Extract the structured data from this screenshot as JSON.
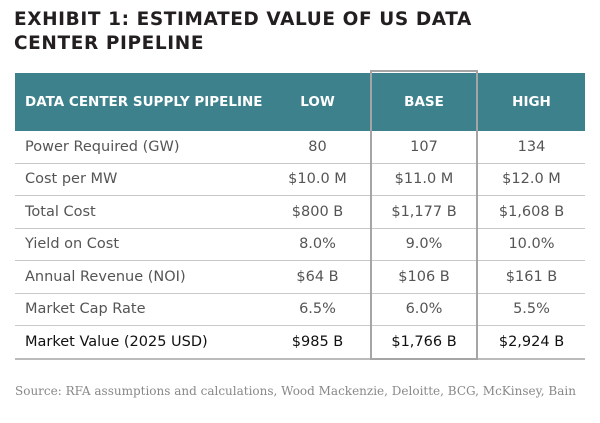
{
  "title": "EXHIBIT 1: ESTIMATED VALUE OF US DATA CENTER PIPELINE",
  "header": {
    "label": "DATA CENTER SUPPLY PIPELINE",
    "low": "LOW",
    "base": "BASE",
    "high": "HIGH"
  },
  "header_color": "#3c818c",
  "rows": [
    {
      "label": "Power Required (GW)",
      "low": "80",
      "base": "107",
      "high": "134"
    },
    {
      "label": "Cost per MW",
      "low": "$10.0 M",
      "base": "$11.0 M",
      "high": "$12.0 M"
    },
    {
      "label": "Total Cost",
      "low": "$800 B",
      "base": "$1,177 B",
      "high": "$1,608 B"
    },
    {
      "label": "Yield on Cost",
      "low": "8.0%",
      "base": "9.0%",
      "high": "10.0%"
    },
    {
      "label": "Annual Revenue (NOI)",
      "low": "$64 B",
      "base": "$106 B",
      "high": "$161 B"
    },
    {
      "label": "Market Cap Rate",
      "low": "6.5%",
      "base": "6.0%",
      "high": "5.5%"
    },
    {
      "label": "Market Value (2025 USD)",
      "low": "$985 B",
      "base": "$1,766 B",
      "high": "$2,924 B"
    }
  ],
  "source": "Source: RFA assumptions and calculations, Wood Mackenzie, Deloitte, BCG, McKinsey, Bain"
}
